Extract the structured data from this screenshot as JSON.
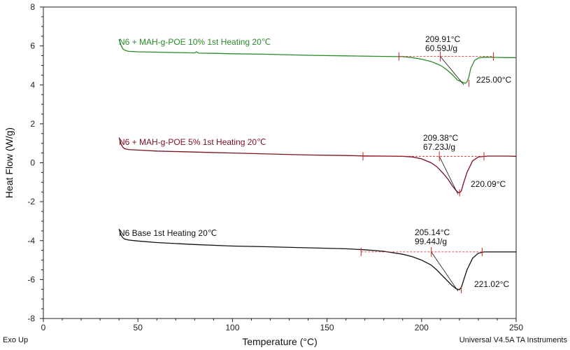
{
  "chart_data": {
    "type": "line",
    "xlabel": "Temperature (°C)",
    "ylabel": "Heat Flow (W/g)",
    "xlim": [
      0,
      250
    ],
    "ylim": [
      -8,
      8
    ],
    "x_ticks": [
      0,
      50,
      100,
      150,
      200,
      250
    ],
    "y_ticks": [
      -8,
      -6,
      -4,
      -2,
      0,
      2,
      4,
      6,
      8
    ],
    "grid": false,
    "footer_left": "Exo Up",
    "footer_right": "Universal V4.5A TA Instruments",
    "series": [
      {
        "name": "N6 + MAH-g-POE 10% 1st Heating 20℃",
        "color": "#2a8a2a",
        "x": [
          40,
          41,
          42,
          43,
          45,
          50,
          60,
          70,
          80,
          81,
          82,
          90,
          100,
          120,
          140,
          160,
          180,
          190,
          195,
          200,
          205,
          210,
          213,
          216,
          219,
          222,
          223,
          224,
          225,
          226,
          228,
          230,
          233,
          236,
          240,
          245,
          250
        ],
        "y": [
          6.35,
          6.05,
          5.85,
          5.78,
          5.72,
          5.7,
          5.68,
          5.66,
          5.64,
          5.7,
          5.63,
          5.62,
          5.6,
          5.57,
          5.52,
          5.49,
          5.46,
          5.45,
          5.4,
          5.32,
          5.2,
          5.0,
          4.8,
          4.55,
          4.25,
          4.12,
          4.08,
          4.15,
          4.4,
          4.85,
          5.25,
          5.38,
          5.42,
          5.42,
          5.41,
          5.4,
          5.4
        ],
        "annotations": {
          "onset_temp": "209.91°C",
          "enthalpy": "60.59J/g",
          "peak": "225.00°C",
          "peak_x": 225.0,
          "baseline": [
            188,
            238
          ],
          "baseline_y": 5.46
        }
      },
      {
        "name": "N6 + MAH-g-POE 5% 1st Heating 20℃",
        "color": "#7a1020",
        "x": [
          40,
          41,
          42,
          43,
          45,
          50,
          60,
          80,
          100,
          120,
          140,
          160,
          170,
          180,
          190,
          195,
          200,
          205,
          208,
          211,
          214,
          216,
          218,
          219,
          220,
          221,
          222,
          224,
          227,
          230,
          235,
          240,
          245,
          250
        ],
        "y": [
          1.3,
          0.98,
          0.8,
          0.72,
          0.68,
          0.65,
          0.6,
          0.55,
          0.5,
          0.45,
          0.4,
          0.37,
          0.35,
          0.34,
          0.33,
          0.3,
          0.2,
          0.0,
          -0.2,
          -0.5,
          -0.85,
          -1.15,
          -1.4,
          -1.5,
          -1.55,
          -1.45,
          -1.1,
          -0.5,
          0.1,
          0.3,
          0.34,
          0.34,
          0.34,
          0.33
        ],
        "annotations": {
          "onset_temp": "209.38°C",
          "enthalpy": "67.23J/g",
          "peak": "220.09°C",
          "peak_x": 220.09,
          "baseline": [
            169,
            233
          ],
          "baseline_y": 0.33
        }
      },
      {
        "name": "N6 Base 1st Heating 20℃",
        "color": "#111111",
        "x": [
          40,
          41,
          42,
          43,
          45,
          50,
          60,
          80,
          100,
          120,
          140,
          160,
          170,
          180,
          190,
          195,
          200,
          205,
          208,
          211,
          214,
          216,
          218,
          219,
          220,
          221,
          222,
          224,
          227,
          230,
          233,
          236,
          240,
          245,
          250
        ],
        "y": [
          -3.4,
          -3.7,
          -3.85,
          -3.92,
          -3.97,
          -4.02,
          -4.1,
          -4.2,
          -4.28,
          -4.32,
          -4.37,
          -4.42,
          -4.47,
          -4.55,
          -4.7,
          -4.82,
          -5.0,
          -5.25,
          -5.5,
          -5.8,
          -6.1,
          -6.3,
          -6.45,
          -6.5,
          -6.52,
          -6.4,
          -6.1,
          -5.5,
          -4.9,
          -4.65,
          -4.58,
          -4.58,
          -4.58,
          -4.58,
          -4.58
        ],
        "annotations": {
          "onset_temp": "205.14°C",
          "enthalpy": "99.44J/g",
          "peak": "221.02°C",
          "peak_x": 221.02,
          "baseline": [
            168,
            232
          ],
          "baseline_y": -4.58
        }
      }
    ]
  }
}
